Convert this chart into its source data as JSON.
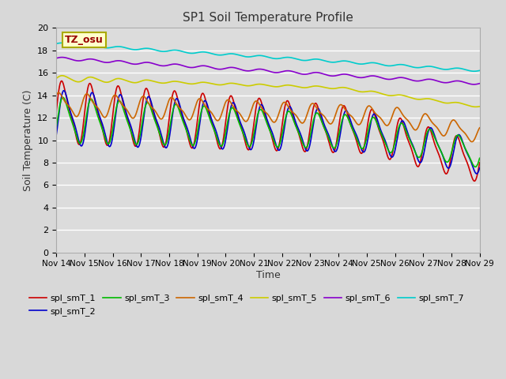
{
  "title": "SP1 Soil Temperature Profile",
  "xlabel": "Time",
  "ylabel": "Soil Temperature (C)",
  "ylim": [
    0,
    20
  ],
  "yticks": [
    0,
    2,
    4,
    6,
    8,
    10,
    12,
    14,
    16,
    18,
    20
  ],
  "xtick_labels": [
    "Nov 14",
    "Nov 15",
    "Nov 16",
    "Nov 17",
    "Nov 18",
    "Nov 19",
    "Nov 20",
    "Nov 21",
    "Nov 22",
    "Nov 23",
    "Nov 24",
    "Nov 25",
    "Nov 26",
    "Nov 27",
    "Nov 28",
    "Nov 29"
  ],
  "series_colors": {
    "spl_smT_1": "#cc0000",
    "spl_smT_2": "#0000cc",
    "spl_smT_3": "#00bb00",
    "spl_smT_4": "#cc6600",
    "spl_smT_5": "#cccc00",
    "spl_smT_6": "#8800cc",
    "spl_smT_7": "#00cccc"
  },
  "legend_labels": [
    "spl_smT_1",
    "spl_smT_2",
    "spl_smT_3",
    "spl_smT_4",
    "spl_smT_5",
    "spl_smT_6",
    "spl_smT_7"
  ],
  "background_color": "#dcdcdc",
  "grid_color": "#ffffff",
  "fig_facecolor": "#d8d8d8",
  "annotation_text": "TZ_osu",
  "annotation_color": "#990000",
  "annotation_bg": "#ffffcc",
  "annotation_border": "#aaaa00"
}
